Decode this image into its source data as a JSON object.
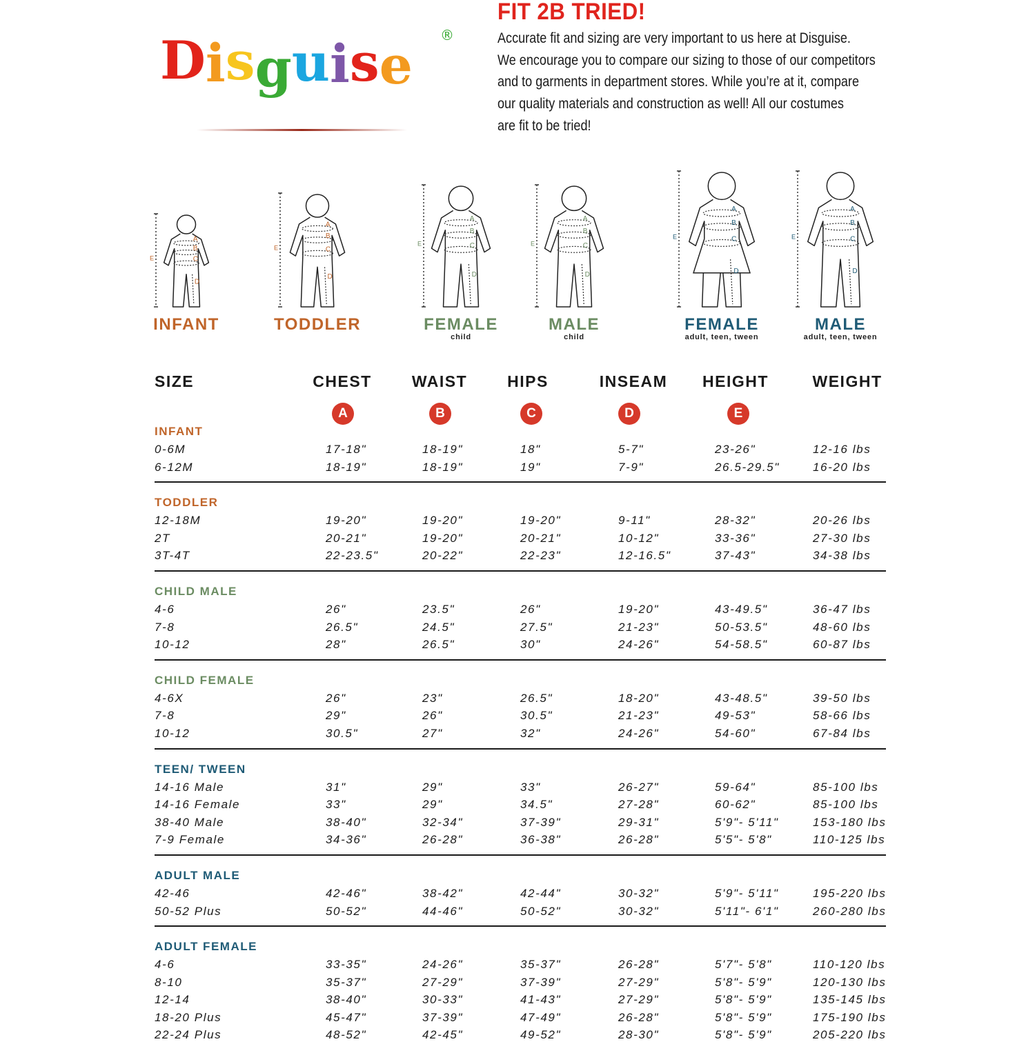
{
  "brand": {
    "logo_text": "Disguise",
    "logo_letters": [
      {
        "ch": "D",
        "color": "#e2231a"
      },
      {
        "ch": "i",
        "color": "#f39a1f"
      },
      {
        "ch": "s",
        "color": "#f7c51e"
      },
      {
        "ch": "g",
        "color": "#3aaa35"
      },
      {
        "ch": "u",
        "color": "#1ba6e0"
      },
      {
        "ch": "i",
        "color": "#7e57a8"
      },
      {
        "ch": "s",
        "color": "#e2231a"
      },
      {
        "ch": "e",
        "color": "#f39a1f"
      }
    ],
    "registered": "®"
  },
  "headline": "FIT 2B TRIED!",
  "intro_lines": [
    "Accurate fit and sizing are very important to us here at Disguise.",
    "We encourage you to compare our sizing to those of our competitors",
    "and to garments in department stores. While you’re at it, compare",
    "our quality materials and construction as well! All our costumes",
    "are fit to be tried!"
  ],
  "colors": {
    "headline": "#e0241d",
    "infant": "#c0652a",
    "child": "#6b8c62",
    "adult": "#1f5b76",
    "badge": "#d6392a"
  },
  "figures": [
    {
      "label": "INFANT",
      "sub": "",
      "color": "#c0652a",
      "type": "infant"
    },
    {
      "label": "TODDLER",
      "sub": "",
      "color": "#c0652a",
      "type": "toddler"
    },
    {
      "label": "FEMALE",
      "sub": "child",
      "color": "#6b8c62",
      "type": "girl"
    },
    {
      "label": "MALE",
      "sub": "child",
      "color": "#6b8c62",
      "type": "boy"
    },
    {
      "label": "FEMALE",
      "sub": "adult, teen, tween",
      "color": "#1f5b76",
      "type": "woman"
    },
    {
      "label": "MALE",
      "sub": "adult, teen, tween",
      "color": "#1f5b76",
      "type": "man"
    }
  ],
  "figure_markers": [
    "A",
    "B",
    "C",
    "D",
    "E"
  ],
  "table": {
    "headers": [
      "SIZE",
      "CHEST",
      "WAIST",
      "HIPS",
      "INSEAM",
      "HEIGHT",
      "WEIGHT"
    ],
    "badges": [
      "A",
      "B",
      "C",
      "D",
      "E"
    ],
    "sections": [
      {
        "title": "INFANT",
        "color": "#c0652a",
        "rows": [
          [
            "0-6M",
            "17-18\"",
            "18-19\"",
            "18\"",
            "5-7\"",
            "23-26\"",
            "12-16 lbs"
          ],
          [
            "6-12M",
            "18-19\"",
            "18-19\"",
            "19\"",
            "7-9\"",
            "26.5-29.5\"",
            "16-20 lbs"
          ]
        ]
      },
      {
        "title": "TODDLER",
        "color": "#c0652a",
        "rows": [
          [
            "12-18M",
            "19-20\"",
            "19-20\"",
            "19-20\"",
            "9-11\"",
            "28-32\"",
            "20-26 lbs"
          ],
          [
            "2T",
            "20-21\"",
            "19-20\"",
            "20-21\"",
            "10-12\"",
            "33-36\"",
            "27-30 lbs"
          ],
          [
            "3T-4T",
            "22-23.5\"",
            "20-22\"",
            "22-23\"",
            "12-16.5\"",
            "37-43\"",
            "34-38 lbs"
          ]
        ]
      },
      {
        "title": "CHILD MALE",
        "color": "#6b8c62",
        "rows": [
          [
            "4-6",
            "26\"",
            "23.5\"",
            "26\"",
            "19-20\"",
            "43-49.5\"",
            "36-47 lbs"
          ],
          [
            "7-8",
            "26.5\"",
            "24.5\"",
            "27.5\"",
            "21-23\"",
            "50-53.5\"",
            "48-60 lbs"
          ],
          [
            "10-12",
            "28\"",
            "26.5\"",
            "30\"",
            "24-26\"",
            "54-58.5\"",
            "60-87 lbs"
          ]
        ]
      },
      {
        "title": "CHILD FEMALE",
        "color": "#6b8c62",
        "rows": [
          [
            "4-6X",
            "26\"",
            "23\"",
            "26.5\"",
            "18-20\"",
            "43-48.5\"",
            "39-50 lbs"
          ],
          [
            "7-8",
            "29\"",
            "26\"",
            "30.5\"",
            "21-23\"",
            "49-53\"",
            "58-66 lbs"
          ],
          [
            "10-12",
            "30.5\"",
            "27\"",
            "32\"",
            "24-26\"",
            "54-60\"",
            "67-84 lbs"
          ]
        ]
      },
      {
        "title": "TEEN/ TWEEN",
        "color": "#1f5b76",
        "rows": [
          [
            "14-16 Male",
            "31\"",
            "29\"",
            "33\"",
            "26-27\"",
            "59-64\"",
            "85-100 lbs"
          ],
          [
            "14-16 Female",
            "33\"",
            "29\"",
            "34.5\"",
            "27-28\"",
            "60-62\"",
            "85-100 lbs"
          ],
          [
            "38-40 Male",
            "38-40\"",
            "32-34\"",
            "37-39\"",
            "29-31\"",
            "5'9\"- 5'11\"",
            "153-180 lbs"
          ],
          [
            "7-9 Female",
            "34-36\"",
            "26-28\"",
            "36-38\"",
            "26-28\"",
            "5'5\"- 5'8\"",
            "110-125 lbs"
          ]
        ]
      },
      {
        "title": "ADULT MALE",
        "color": "#1f5b76",
        "rows": [
          [
            "42-46",
            "42-46\"",
            "38-42\"",
            "42-44\"",
            "30-32\"",
            "5'9\"- 5'11\"",
            "195-220 lbs"
          ],
          [
            "50-52 Plus",
            "50-52\"",
            "44-46\"",
            "50-52\"",
            "30-32\"",
            "5'11\"- 6'1\"",
            "260-280 lbs"
          ]
        ]
      },
      {
        "title": "ADULT FEMALE",
        "color": "#1f5b76",
        "rows": [
          [
            "4-6",
            "33-35\"",
            "24-26\"",
            "35-37\"",
            "26-28\"",
            "5'7\"- 5'8\"",
            "110-120 lbs"
          ],
          [
            "8-10",
            "35-37\"",
            "27-29\"",
            "37-39\"",
            "27-29\"",
            "5'8\"- 5'9\"",
            "120-130 lbs"
          ],
          [
            "12-14",
            "38-40\"",
            "30-33\"",
            "41-43\"",
            "27-29\"",
            "5'8\"- 5'9\"",
            "135-145 lbs"
          ],
          [
            "18-20 Plus",
            "45-47\"",
            "37-39\"",
            "47-49\"",
            "26-28\"",
            "5'8\"- 5'9\"",
            "175-190 lbs"
          ],
          [
            "22-24 Plus",
            "48-52\"",
            "42-45\"",
            "49-52\"",
            "28-30\"",
            "5'8\"- 5'9\"",
            "205-220 lbs"
          ]
        ]
      }
    ]
  }
}
